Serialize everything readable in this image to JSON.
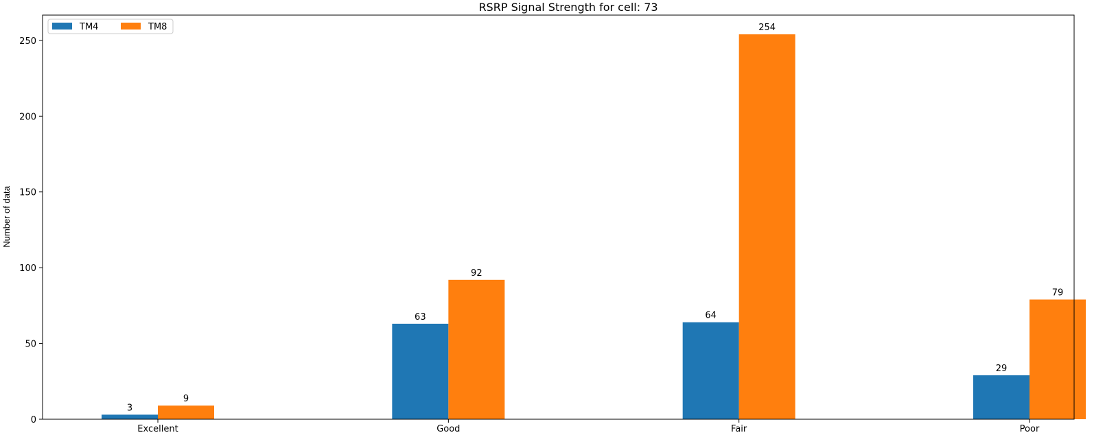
{
  "chart_data": {
    "type": "bar",
    "title": "RSRP Signal Strength for cell: 73",
    "xlabel": "",
    "ylabel": "Number of data",
    "categories": [
      "Excellent",
      "Good",
      "Fair",
      "Poor"
    ],
    "series": [
      {
        "name": "TM4",
        "color": "#1f77b4",
        "values": [
          3,
          63,
          64,
          29
        ]
      },
      {
        "name": "TM8",
        "color": "#ff7f0e",
        "values": [
          9,
          92,
          254,
          79
        ]
      }
    ],
    "ylim": [
      0,
      266.7
    ],
    "yticks": [
      0,
      50,
      100,
      150,
      200,
      250
    ],
    "grid": false,
    "legend": {
      "placement": "top-left",
      "ncol": 2
    }
  }
}
